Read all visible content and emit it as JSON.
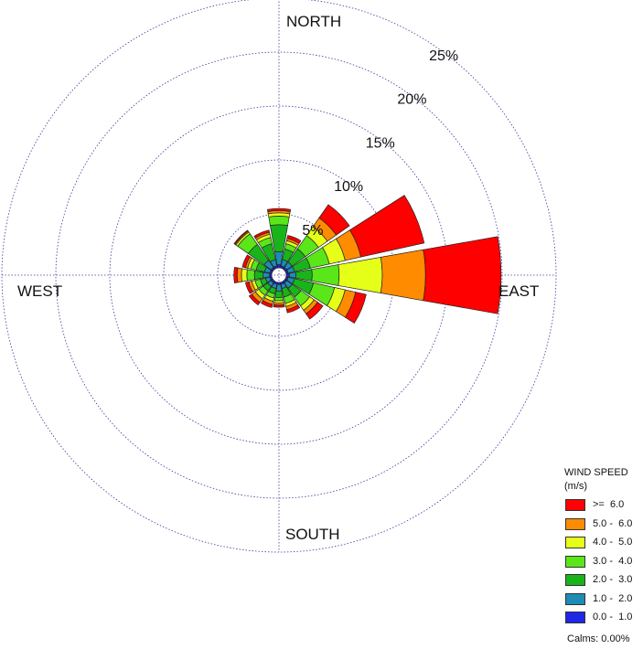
{
  "chart_data": {
    "type": "windrose",
    "directions": [
      "N",
      "NNE",
      "NE",
      "ENE",
      "E",
      "ESE",
      "SE",
      "SSE",
      "S",
      "SSW",
      "SW",
      "WSW",
      "W",
      "WNW",
      "NW",
      "NNW"
    ],
    "compass_labels": {
      "north": "NORTH",
      "east": "EAST",
      "south": "SOUTH",
      "west": "WEST"
    },
    "rings": [
      {
        "value": 5,
        "label": "5%"
      },
      {
        "value": 10,
        "label": "10%"
      },
      {
        "value": 15,
        "label": "15%"
      },
      {
        "value": 20,
        "label": "20%"
      },
      {
        "value": 25,
        "label": "25%"
      }
    ],
    "grid": true,
    "legend": {
      "title_line1": "WIND SPEED",
      "title_line2": "(m/s)",
      "placement": "bottom-right",
      "classes": [
        {
          "label": ">=  6.0",
          "color": "#ff0000"
        },
        {
          "label": "5.0 -  6.0",
          "color": "#ff8c00"
        },
        {
          "label": "4.0 -  5.0",
          "color": "#e6ff19"
        },
        {
          "label": "3.0 -  4.0",
          "color": "#5ae619"
        },
        {
          "label": "2.0 -  3.0",
          "color": "#19b419"
        },
        {
          "label": "1.0 -  2.0",
          "color": "#1e8cb4"
        },
        {
          "label": "0.0 -  1.0",
          "color": "#1e28e6"
        }
      ]
    },
    "calms": "Calms: 0.00%",
    "series": [
      {
        "name": "0.0 -  1.0",
        "values": [
          0.3,
          0.2,
          0.2,
          0.2,
          0.3,
          0.2,
          0.2,
          0.2,
          0.2,
          0.2,
          0.2,
          0.2,
          0.2,
          0.2,
          0.2,
          0.2
        ]
      },
      {
        "name": "1.0 -  2.0",
        "values": [
          1.2,
          0.6,
          0.6,
          0.6,
          0.6,
          0.6,
          0.6,
          0.4,
          0.6,
          0.4,
          0.4,
          0.4,
          0.6,
          0.5,
          0.8,
          0.6
        ]
      },
      {
        "name": "2.0 -  3.0",
        "values": [
          2.5,
          1.0,
          1.5,
          1.5,
          1.5,
          1.8,
          1.0,
          0.8,
          0.6,
          0.5,
          0.5,
          0.5,
          0.8,
          0.8,
          1.8,
          1.5
        ]
      },
      {
        "name": "3.0 -  4.0",
        "values": [
          0.8,
          0.5,
          1.5,
          1.8,
          2.5,
          2.0,
          1.0,
          0.6,
          0.3,
          0.4,
          0.5,
          0.5,
          0.7,
          0.5,
          1.2,
          0.6
        ]
      },
      {
        "name": "4.0 -  5.0",
        "values": [
          0.3,
          0.3,
          1.0,
          1.5,
          4.0,
          1.0,
          0.5,
          0.3,
          0.2,
          0.3,
          0.4,
          0.3,
          0.5,
          0.3,
          0.2,
          0.3
        ]
      },
      {
        "name": "5.0 -  6.0",
        "values": [
          0.2,
          0.2,
          1.0,
          1.5,
          4.0,
          1.0,
          0.4,
          0.3,
          0.2,
          0.3,
          0.4,
          0.3,
          0.4,
          0.2,
          0.1,
          0.2
        ]
      },
      {
        "name": ">=  6.0",
        "values": [
          0.2,
          0.3,
          1.5,
          6.0,
          7.0,
          1.0,
          0.6,
          0.3,
          0.2,
          0.3,
          0.3,
          0.3,
          0.3,
          0.3,
          0.1,
          0.2
        ]
      }
    ]
  }
}
